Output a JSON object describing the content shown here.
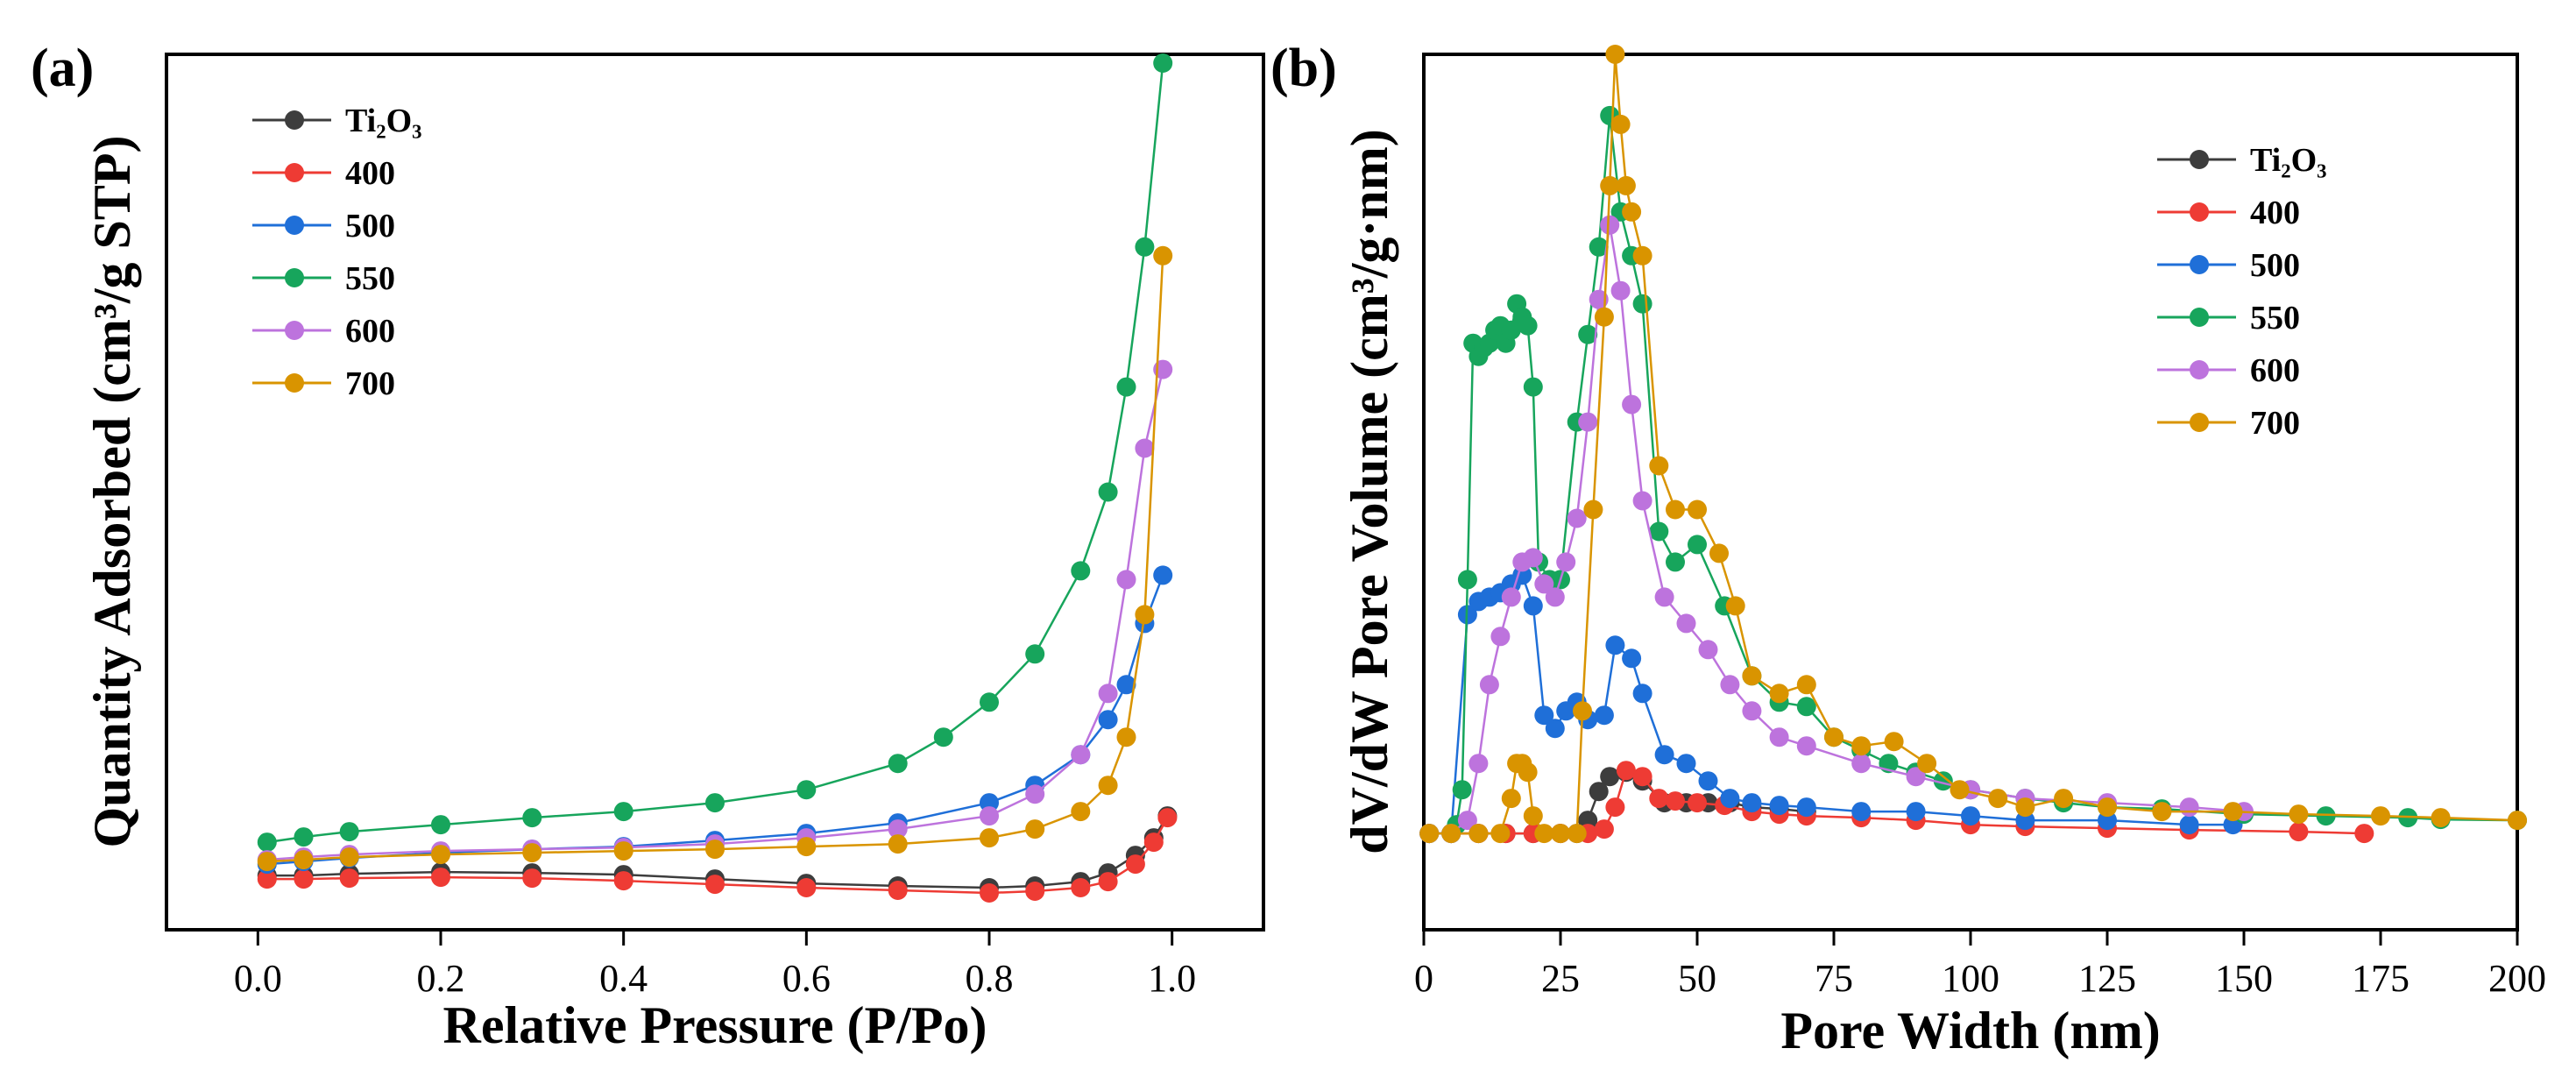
{
  "chart_data": [
    {
      "type": "line",
      "panel_label": "(a)",
      "title": "",
      "xlabel": "Relative Pressure (P/Po)",
      "ylabel": "Quantity Adsorbed (cm³/g STP)",
      "xlim": [
        -0.1,
        1.1
      ],
      "ylim": [
        0,
        100
      ],
      "xticks": [
        0.0,
        0.2,
        0.4,
        0.6,
        0.8,
        1.0
      ],
      "xtick_labels": [
        "0.0",
        "0.2",
        "0.4",
        "0.6",
        "0.8",
        "1.0"
      ],
      "yticks_shown": false,
      "grid": false,
      "legend_position": "top-left",
      "series": [
        {
          "name": "Ti₂O₃",
          "color": "#3d3d3d",
          "x": [
            0.01,
            0.05,
            0.1,
            0.2,
            0.3,
            0.4,
            0.5,
            0.6,
            0.7,
            0.8,
            0.85,
            0.9,
            0.93,
            0.96,
            0.98,
            0.995
          ],
          "y": [
            6.2,
            6.2,
            6.4,
            6.6,
            6.5,
            6.3,
            5.8,
            5.3,
            5.0,
            4.8,
            5.0,
            5.5,
            6.5,
            8.5,
            10.5,
            13.0
          ]
        },
        {
          "name": "400",
          "color": "#ee3b34",
          "x": [
            0.01,
            0.05,
            0.1,
            0.2,
            0.3,
            0.4,
            0.5,
            0.6,
            0.7,
            0.8,
            0.85,
            0.9,
            0.93,
            0.96,
            0.98,
            0.995
          ],
          "y": [
            5.8,
            5.8,
            5.9,
            6.0,
            5.9,
            5.6,
            5.2,
            4.8,
            4.5,
            4.2,
            4.4,
            4.8,
            5.5,
            7.5,
            10.0,
            12.8
          ]
        },
        {
          "name": "500",
          "color": "#1f6fd8",
          "x": [
            0.01,
            0.05,
            0.1,
            0.2,
            0.3,
            0.4,
            0.5,
            0.6,
            0.7,
            0.8,
            0.85,
            0.9,
            0.93,
            0.95,
            0.97,
            0.99
          ],
          "y": [
            7.5,
            7.8,
            8.2,
            8.8,
            9.2,
            9.5,
            10.2,
            11.0,
            12.2,
            14.5,
            16.5,
            20.0,
            24.0,
            28.0,
            35.0,
            40.5
          ]
        },
        {
          "name": "550",
          "color": "#17a55c",
          "x": [
            0.01,
            0.05,
            0.1,
            0.2,
            0.3,
            0.4,
            0.5,
            0.6,
            0.7,
            0.75,
            0.8,
            0.85,
            0.9,
            0.93,
            0.95,
            0.97,
            0.99
          ],
          "y": [
            10.0,
            10.6,
            11.2,
            12.0,
            12.8,
            13.5,
            14.5,
            16.0,
            19.0,
            22.0,
            26.0,
            31.5,
            41.0,
            50.0,
            62.0,
            78.0,
            99.0
          ]
        },
        {
          "name": "600",
          "color": "#bd73dd",
          "x": [
            0.01,
            0.05,
            0.1,
            0.2,
            0.3,
            0.4,
            0.5,
            0.6,
            0.7,
            0.8,
            0.85,
            0.9,
            0.93,
            0.95,
            0.97,
            0.99
          ],
          "y": [
            8.0,
            8.3,
            8.6,
            9.0,
            9.2,
            9.4,
            9.8,
            10.5,
            11.5,
            13.0,
            15.5,
            20.0,
            27.0,
            40.0,
            55.0,
            64.0
          ]
        },
        {
          "name": "700",
          "color": "#d99400",
          "x": [
            0.01,
            0.05,
            0.1,
            0.2,
            0.3,
            0.4,
            0.5,
            0.6,
            0.7,
            0.8,
            0.85,
            0.9,
            0.93,
            0.95,
            0.97,
            0.99
          ],
          "y": [
            7.8,
            8.0,
            8.3,
            8.6,
            8.8,
            9.0,
            9.2,
            9.5,
            9.8,
            10.5,
            11.5,
            13.5,
            16.5,
            22.0,
            36.0,
            77.0
          ]
        }
      ]
    },
    {
      "type": "line",
      "panel_label": "(b)",
      "title": "",
      "xlabel": "Pore Width (nm)",
      "ylabel": "dV/dW Pore Volume (cm³/g·nm)",
      "xlim": [
        0,
        200
      ],
      "ylim": [
        0,
        100
      ],
      "xticks": [
        0,
        25,
        50,
        75,
        100,
        125,
        150,
        175,
        200
      ],
      "xtick_labels": [
        "0",
        "25",
        "50",
        "75",
        "100",
        "125",
        "150",
        "175",
        "200"
      ],
      "yticks_shown": false,
      "grid": false,
      "legend_position": "top-right",
      "series": [
        {
          "name": "Ti₂O₃",
          "color": "#3d3d3d",
          "x": [
            1,
            5,
            10,
            15,
            20,
            25,
            28,
            30,
            32,
            34,
            37,
            40,
            44,
            48,
            52,
            56,
            60,
            65,
            70
          ],
          "y": [
            11.0,
            11.0,
            11.0,
            11.0,
            11.0,
            11.0,
            11.0,
            12.5,
            15.8,
            17.5,
            18.0,
            17.0,
            14.5,
            14.5,
            14.5,
            14.5,
            14.0,
            13.8,
            13.5
          ]
        },
        {
          "name": "400",
          "color": "#ee3b34",
          "x": [
            1,
            5,
            10,
            15,
            20,
            25,
            30,
            33,
            35,
            37,
            40,
            43,
            46,
            50,
            55,
            60,
            65,
            70,
            80,
            90,
            100,
            110,
            125,
            140,
            160,
            172
          ],
          "y": [
            11.0,
            11.0,
            11.0,
            11.0,
            11.0,
            11.0,
            11.0,
            11.5,
            14.0,
            18.2,
            17.5,
            15.0,
            14.7,
            14.5,
            14.2,
            13.5,
            13.2,
            13.0,
            12.8,
            12.5,
            12.0,
            11.8,
            11.6,
            11.4,
            11.2,
            11.0
          ]
        },
        {
          "name": "500",
          "color": "#1f6fd8",
          "x": [
            1,
            5,
            8,
            10,
            12,
            14,
            16,
            18,
            20,
            22,
            24,
            26,
            28,
            30,
            33,
            35,
            38,
            40,
            44,
            48,
            52,
            56,
            60,
            65,
            70,
            80,
            90,
            100,
            110,
            125,
            140,
            148
          ],
          "y": [
            11.0,
            11.0,
            36.0,
            37.5,
            38.0,
            38.5,
            39.5,
            40.5,
            37.0,
            24.5,
            23.0,
            25.0,
            26.0,
            24.0,
            24.5,
            32.5,
            31.0,
            27.0,
            20.0,
            19.0,
            17.0,
            15.0,
            14.5,
            14.2,
            14.0,
            13.5,
            13.5,
            13.0,
            12.5,
            12.5,
            12.0,
            12.0
          ]
        },
        {
          "name": "550",
          "color": "#17a55c",
          "x": [
            1,
            5,
            6,
            7,
            8,
            9,
            10,
            11,
            12,
            13,
            14,
            15,
            16,
            17,
            18,
            19,
            20,
            21,
            23,
            25,
            28,
            30,
            32,
            34,
            36,
            38,
            40,
            43,
            46,
            50,
            55,
            60,
            65,
            70,
            75,
            80,
            85,
            90,
            95,
            100,
            110,
            117,
            125,
            135,
            150,
            165,
            180,
            186,
            200
          ],
          "y": [
            11.0,
            11.0,
            12.0,
            16.0,
            40.0,
            67.0,
            65.5,
            66.5,
            67.0,
            68.5,
            69.0,
            67.0,
            68.5,
            71.5,
            70.0,
            69.0,
            62.0,
            42.0,
            40.0,
            40.0,
            58.0,
            68.0,
            78.0,
            93.0,
            82.0,
            77.0,
            71.5,
            45.5,
            42.0,
            44.0,
            37.0,
            29.0,
            26.0,
            25.5,
            22.0,
            20.5,
            19.0,
            18.0,
            17.0,
            16.0,
            15.0,
            14.5,
            14.0,
            13.8,
            13.2,
            13.0,
            12.8,
            12.6,
            12.5
          ]
        },
        {
          "name": "600",
          "color": "#bd73dd",
          "x": [
            1,
            5,
            8,
            10,
            12,
            14,
            16,
            18,
            20,
            22,
            24,
            26,
            28,
            30,
            32,
            34,
            36,
            38,
            40,
            44,
            48,
            52,
            56,
            60,
            65,
            70,
            80,
            90,
            100,
            110,
            125,
            140,
            150
          ],
          "y": [
            11.0,
            11.0,
            12.5,
            19.0,
            28.0,
            33.5,
            38.0,
            42.0,
            42.5,
            39.5,
            38.0,
            42.0,
            47.0,
            58.0,
            72.0,
            80.5,
            73.0,
            60.0,
            49.0,
            38.0,
            35.0,
            32.0,
            28.0,
            25.0,
            22.0,
            21.0,
            19.0,
            17.5,
            16.0,
            15.0,
            14.5,
            14.0,
            13.5
          ]
        },
        {
          "name": "700",
          "color": "#d99400",
          "x": [
            1,
            5,
            10,
            14,
            16,
            17,
            18,
            19,
            20,
            22,
            25,
            28,
            29,
            31,
            33,
            34,
            35,
            36,
            37,
            38,
            40,
            43,
            46,
            50,
            54,
            57,
            60,
            65,
            70,
            75,
            80,
            86,
            92,
            98,
            105,
            110,
            117,
            125,
            135,
            148,
            160,
            175,
            186,
            200
          ],
          "y": [
            11.0,
            11.0,
            11.0,
            11.0,
            15.0,
            19.0,
            19.0,
            18.0,
            13.0,
            11.0,
            11.0,
            11.0,
            25.0,
            48.0,
            70.0,
            85.0,
            100.0,
            92.0,
            85.0,
            82.0,
            77.0,
            53.0,
            48.0,
            48.0,
            43.0,
            37.0,
            29.0,
            27.0,
            28.0,
            22.0,
            21.0,
            21.5,
            19.0,
            16.0,
            15.0,
            14.0,
            15.0,
            14.0,
            13.5,
            13.5,
            13.2,
            13.0,
            12.8,
            12.5
          ]
        }
      ]
    }
  ]
}
